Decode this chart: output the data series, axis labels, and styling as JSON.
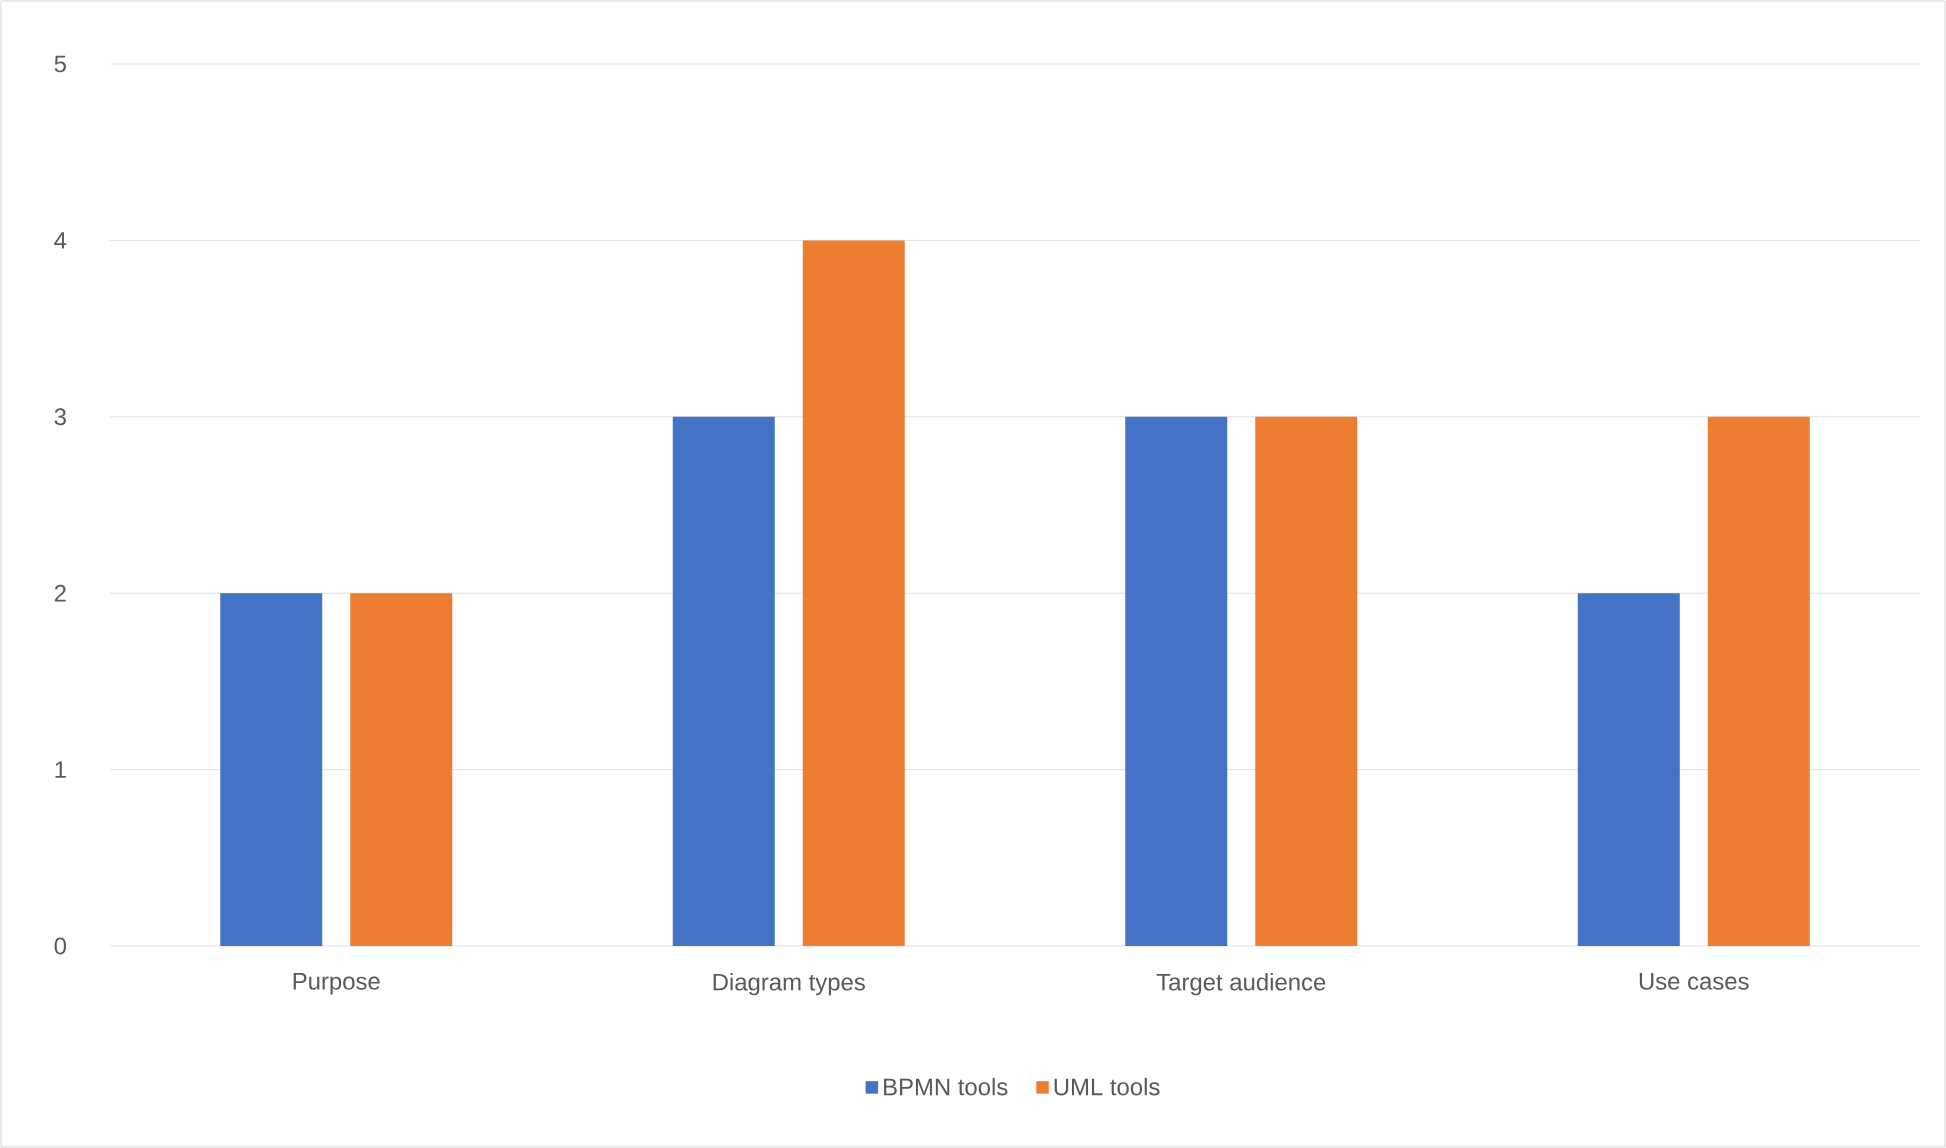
{
  "chart_data": {
    "type": "bar",
    "categories": [
      "Purpose",
      "Diagram types",
      "Target audience",
      "Use cases"
    ],
    "series": [
      {
        "name": "BPMN tools",
        "color": "#4472c4",
        "values": [
          2,
          3,
          3,
          2
        ]
      },
      {
        "name": "UML tools",
        "color": "#ed7d31",
        "values": [
          2,
          4,
          3,
          3
        ]
      }
    ],
    "ylim": [
      0,
      5
    ],
    "yticks": [
      0,
      1,
      2,
      3,
      4,
      5
    ],
    "grid": "y",
    "legend": "bottom"
  }
}
